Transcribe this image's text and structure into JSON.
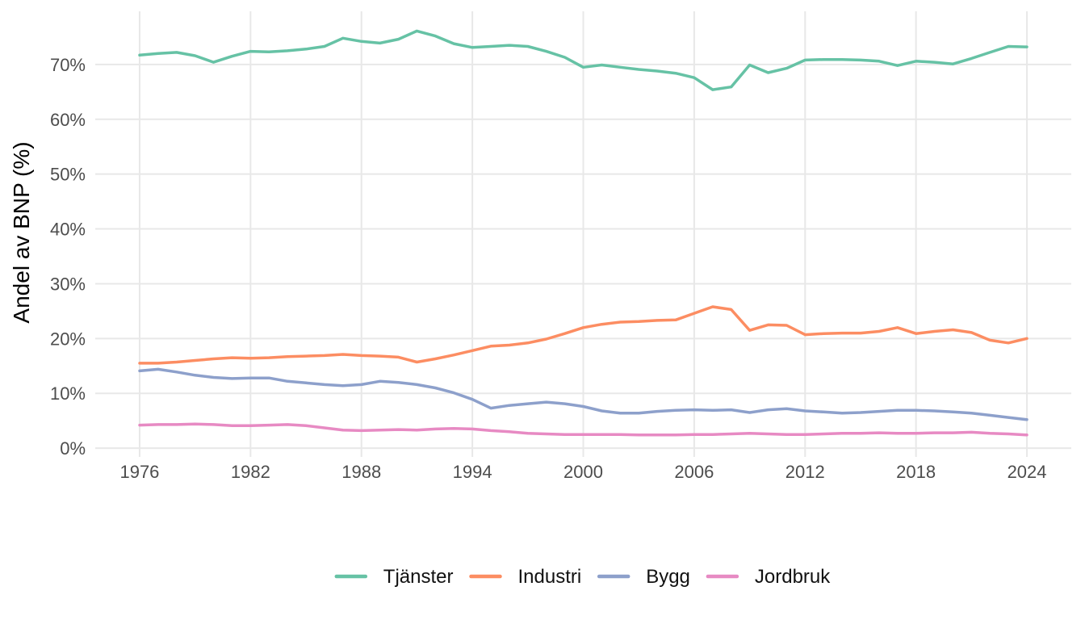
{
  "chart_data": {
    "type": "line",
    "title": "",
    "ylabel": "Andel av BNP (%)",
    "xlabel": "",
    "grid": true,
    "legend_position": "bottom",
    "background": "#FFFFFF",
    "gridline_color": "#E8E8E8",
    "axis_text_color": "#4D4D4D",
    "xlim": [
      1973.6,
      2026.4
    ],
    "ylim": [
      -1.6,
      79.7
    ],
    "x_tick_values": [
      1976,
      1982,
      1988,
      1994,
      2000,
      2006,
      2012,
      2018,
      2024
    ],
    "x_tick_labels": [
      "1976",
      "1982",
      "1988",
      "1994",
      "2000",
      "2006",
      "2012",
      "2018",
      "2024"
    ],
    "y_tick_values": [
      0,
      10,
      20,
      30,
      40,
      50,
      60,
      70
    ],
    "y_tick_labels": [
      "0%",
      "10%",
      "20%",
      "30%",
      "40%",
      "50%",
      "60%",
      "70%"
    ],
    "x": [
      1976,
      1977,
      1978,
      1979,
      1980,
      1981,
      1982,
      1983,
      1984,
      1985,
      1986,
      1987,
      1988,
      1989,
      1990,
      1991,
      1992,
      1993,
      1994,
      1995,
      1996,
      1997,
      1998,
      1999,
      2000,
      2001,
      2002,
      2003,
      2004,
      2005,
      2006,
      2007,
      2008,
      2009,
      2010,
      2011,
      2012,
      2013,
      2014,
      2015,
      2016,
      2017,
      2018,
      2019,
      2020,
      2021,
      2022,
      2023,
      2024
    ],
    "series": [
      {
        "name": "Tjänster",
        "color": "#66C2A5",
        "values": [
          71.7,
          72.0,
          72.2,
          71.6,
          70.4,
          71.5,
          72.4,
          72.3,
          72.5,
          72.8,
          73.3,
          74.8,
          74.2,
          73.9,
          74.6,
          76.1,
          75.2,
          73.8,
          73.1,
          73.3,
          73.5,
          73.3,
          72.4,
          71.3,
          69.5,
          69.9,
          69.5,
          69.1,
          68.8,
          68.4,
          67.6,
          65.4,
          65.9,
          69.9,
          68.5,
          69.3,
          70.8,
          70.9,
          70.9,
          70.8,
          70.6,
          69.8,
          70.6,
          70.4,
          70.1,
          71.1,
          72.2,
          73.3,
          73.2
        ]
      },
      {
        "name": "Industri",
        "color": "#FC8D62",
        "values": [
          15.5,
          15.5,
          15.7,
          16.0,
          16.3,
          16.5,
          16.4,
          16.5,
          16.7,
          16.8,
          16.9,
          17.1,
          16.9,
          16.8,
          16.6,
          15.7,
          16.3,
          17.0,
          17.8,
          18.6,
          18.8,
          19.2,
          19.9,
          20.9,
          22.0,
          22.6,
          23.0,
          23.1,
          23.3,
          23.4,
          24.6,
          25.8,
          25.3,
          21.5,
          22.5,
          22.4,
          20.7,
          20.9,
          21.0,
          21.0,
          21.3,
          22.0,
          20.9,
          21.3,
          21.6,
          21.1,
          19.7,
          19.2,
          20.0
        ]
      },
      {
        "name": "Bygg",
        "color": "#8DA0CB",
        "values": [
          14.1,
          14.4,
          13.9,
          13.3,
          12.9,
          12.7,
          12.8,
          12.8,
          12.2,
          11.9,
          11.6,
          11.4,
          11.6,
          12.2,
          12.0,
          11.6,
          11.0,
          10.1,
          8.9,
          7.3,
          7.8,
          8.1,
          8.4,
          8.1,
          7.6,
          6.8,
          6.4,
          6.4,
          6.7,
          6.9,
          7.0,
          6.9,
          7.0,
          6.5,
          7.0,
          7.2,
          6.8,
          6.6,
          6.4,
          6.5,
          6.7,
          6.9,
          6.9,
          6.8,
          6.6,
          6.4,
          6.0,
          5.6,
          5.2
        ]
      },
      {
        "name": "Jordbruk",
        "color": "#E78AC3",
        "values": [
          4.2,
          4.3,
          4.3,
          4.4,
          4.3,
          4.1,
          4.1,
          4.2,
          4.3,
          4.1,
          3.7,
          3.3,
          3.2,
          3.3,
          3.4,
          3.3,
          3.5,
          3.6,
          3.5,
          3.2,
          3.0,
          2.7,
          2.6,
          2.5,
          2.5,
          2.5,
          2.5,
          2.4,
          2.4,
          2.4,
          2.5,
          2.5,
          2.6,
          2.7,
          2.6,
          2.5,
          2.5,
          2.6,
          2.7,
          2.7,
          2.8,
          2.7,
          2.7,
          2.8,
          2.8,
          2.9,
          2.7,
          2.6,
          2.4
        ]
      }
    ]
  }
}
